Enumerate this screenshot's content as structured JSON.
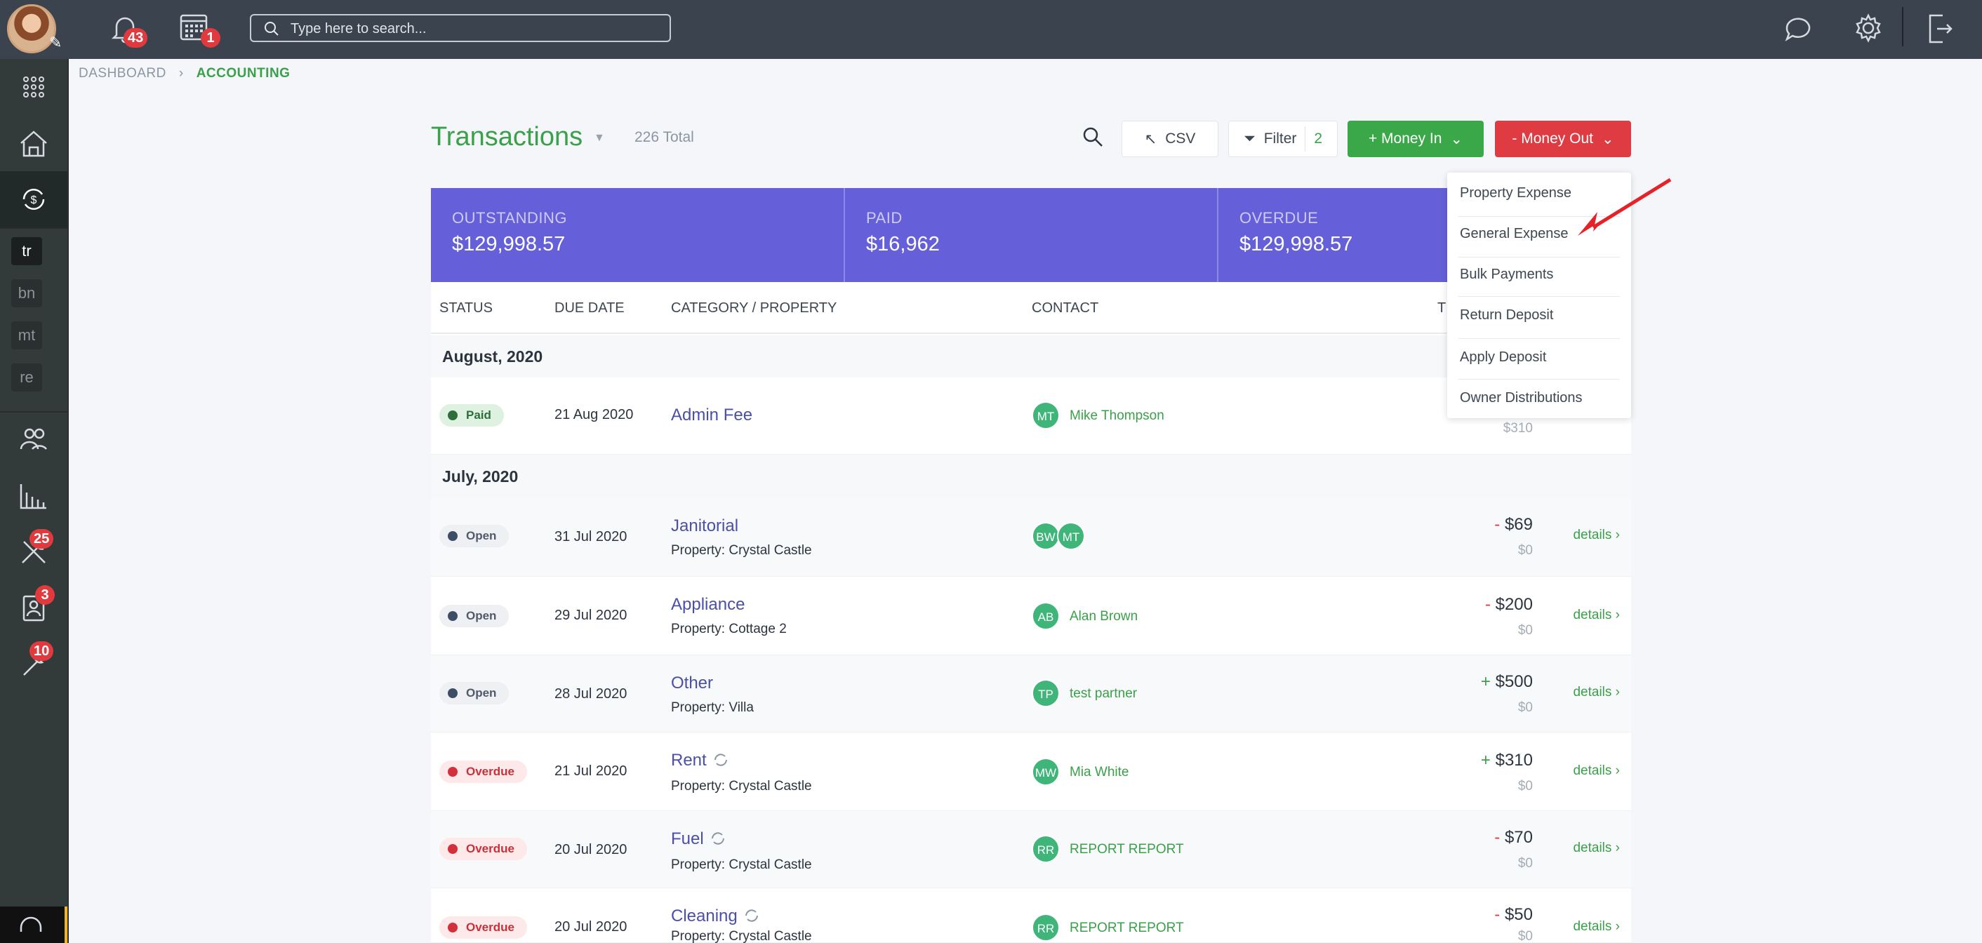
{
  "topbar": {
    "notifications_count": "43",
    "calendar_count": "1",
    "search_placeholder": "Type here to search..."
  },
  "sidebar": {
    "shortcuts": [
      "tr",
      "bn",
      "mt",
      "re"
    ],
    "maintenance_count": "25",
    "contacts_count": "3",
    "tools_count": "10"
  },
  "breadcrumb": {
    "items": [
      "DASHBOARD",
      "ACCOUNTING"
    ]
  },
  "header": {
    "title": "Transactions",
    "total": "226 Total",
    "csv_label": "CSV",
    "filter_label": "Filter",
    "filter_count": "2",
    "money_in_label": "+ Money In",
    "money_out_label": "- Money Out"
  },
  "summary": {
    "outstanding_label": "OUTSTANDING",
    "outstanding_value": "$129,998.57",
    "paid_label": "PAID",
    "paid_value": "$16,962",
    "overdue_label": "OVERDUE",
    "overdue_value": "$129,998.57"
  },
  "table": {
    "columns": [
      "STATUS",
      "DUE DATE",
      "CATEGORY / PROPERTY",
      "CONTACT",
      "T"
    ],
    "groups": [
      "August, 2020",
      "July, 2020"
    ],
    "rows": [
      {
        "status": "Paid",
        "date": "21 Aug 2020",
        "category": "Admin Fee",
        "property": "",
        "contacts": [
          "MT"
        ],
        "contact_name": "Mike Thompson",
        "sign": "",
        "amount": "",
        "sub_amount": "$310",
        "details": ""
      },
      {
        "status": "Open",
        "date": "31 Jul 2020",
        "category": "Janitorial",
        "property": "Property: Crystal Castle",
        "contacts": [
          "BW",
          "MT"
        ],
        "contact_name": "",
        "sign": "-",
        "amount": "$69",
        "sub_amount": "$0",
        "details": "details ›"
      },
      {
        "status": "Open",
        "date": "29 Jul 2020",
        "category": "Appliance",
        "property": "Property: Cottage 2",
        "contacts": [
          "AB"
        ],
        "contact_name": "Alan Brown",
        "sign": "-",
        "amount": "$200",
        "sub_amount": "$0",
        "details": "details ›"
      },
      {
        "status": "Open",
        "date": "28 Jul 2020",
        "category": "Other",
        "property": "Property: Villa",
        "contacts": [
          "TP"
        ],
        "contact_name": "test partner",
        "sign": "+",
        "amount": "$500",
        "sub_amount": "$0",
        "details": "details ›"
      },
      {
        "status": "Overdue",
        "date": "21 Jul 2020",
        "category": "Rent",
        "property": "Property: Crystal Castle",
        "contacts": [
          "MW"
        ],
        "contact_name": "Mia White",
        "sign": "+",
        "amount": "$310",
        "sub_amount": "$0",
        "details": "details ›"
      },
      {
        "status": "Overdue",
        "date": "20 Jul 2020",
        "category": "Fuel",
        "property": "Property: Crystal Castle",
        "contacts": [
          "RR"
        ],
        "contact_name": "REPORT REPORT",
        "sign": "-",
        "amount": "$70",
        "sub_amount": "$0",
        "details": "details ›"
      },
      {
        "status": "Overdue",
        "date": "20 Jul 2020",
        "category": "Cleaning",
        "property": "Property: Crystal Castle",
        "contacts": [
          "RR"
        ],
        "contact_name": "REPORT REPORT",
        "sign": "-",
        "amount": "$50",
        "sub_amount": "$0",
        "details": "details ›"
      }
    ]
  },
  "dropdown": {
    "items": [
      "Property Expense",
      "General Expense",
      "Bulk Payments",
      "Return Deposit",
      "Apply Deposit",
      "Owner Distributions"
    ]
  },
  "colors": {
    "accent_green": "#3aa04a",
    "summary_purple": "#6560d9",
    "danger_red": "#df3b43",
    "topbar": "#3b434e"
  }
}
